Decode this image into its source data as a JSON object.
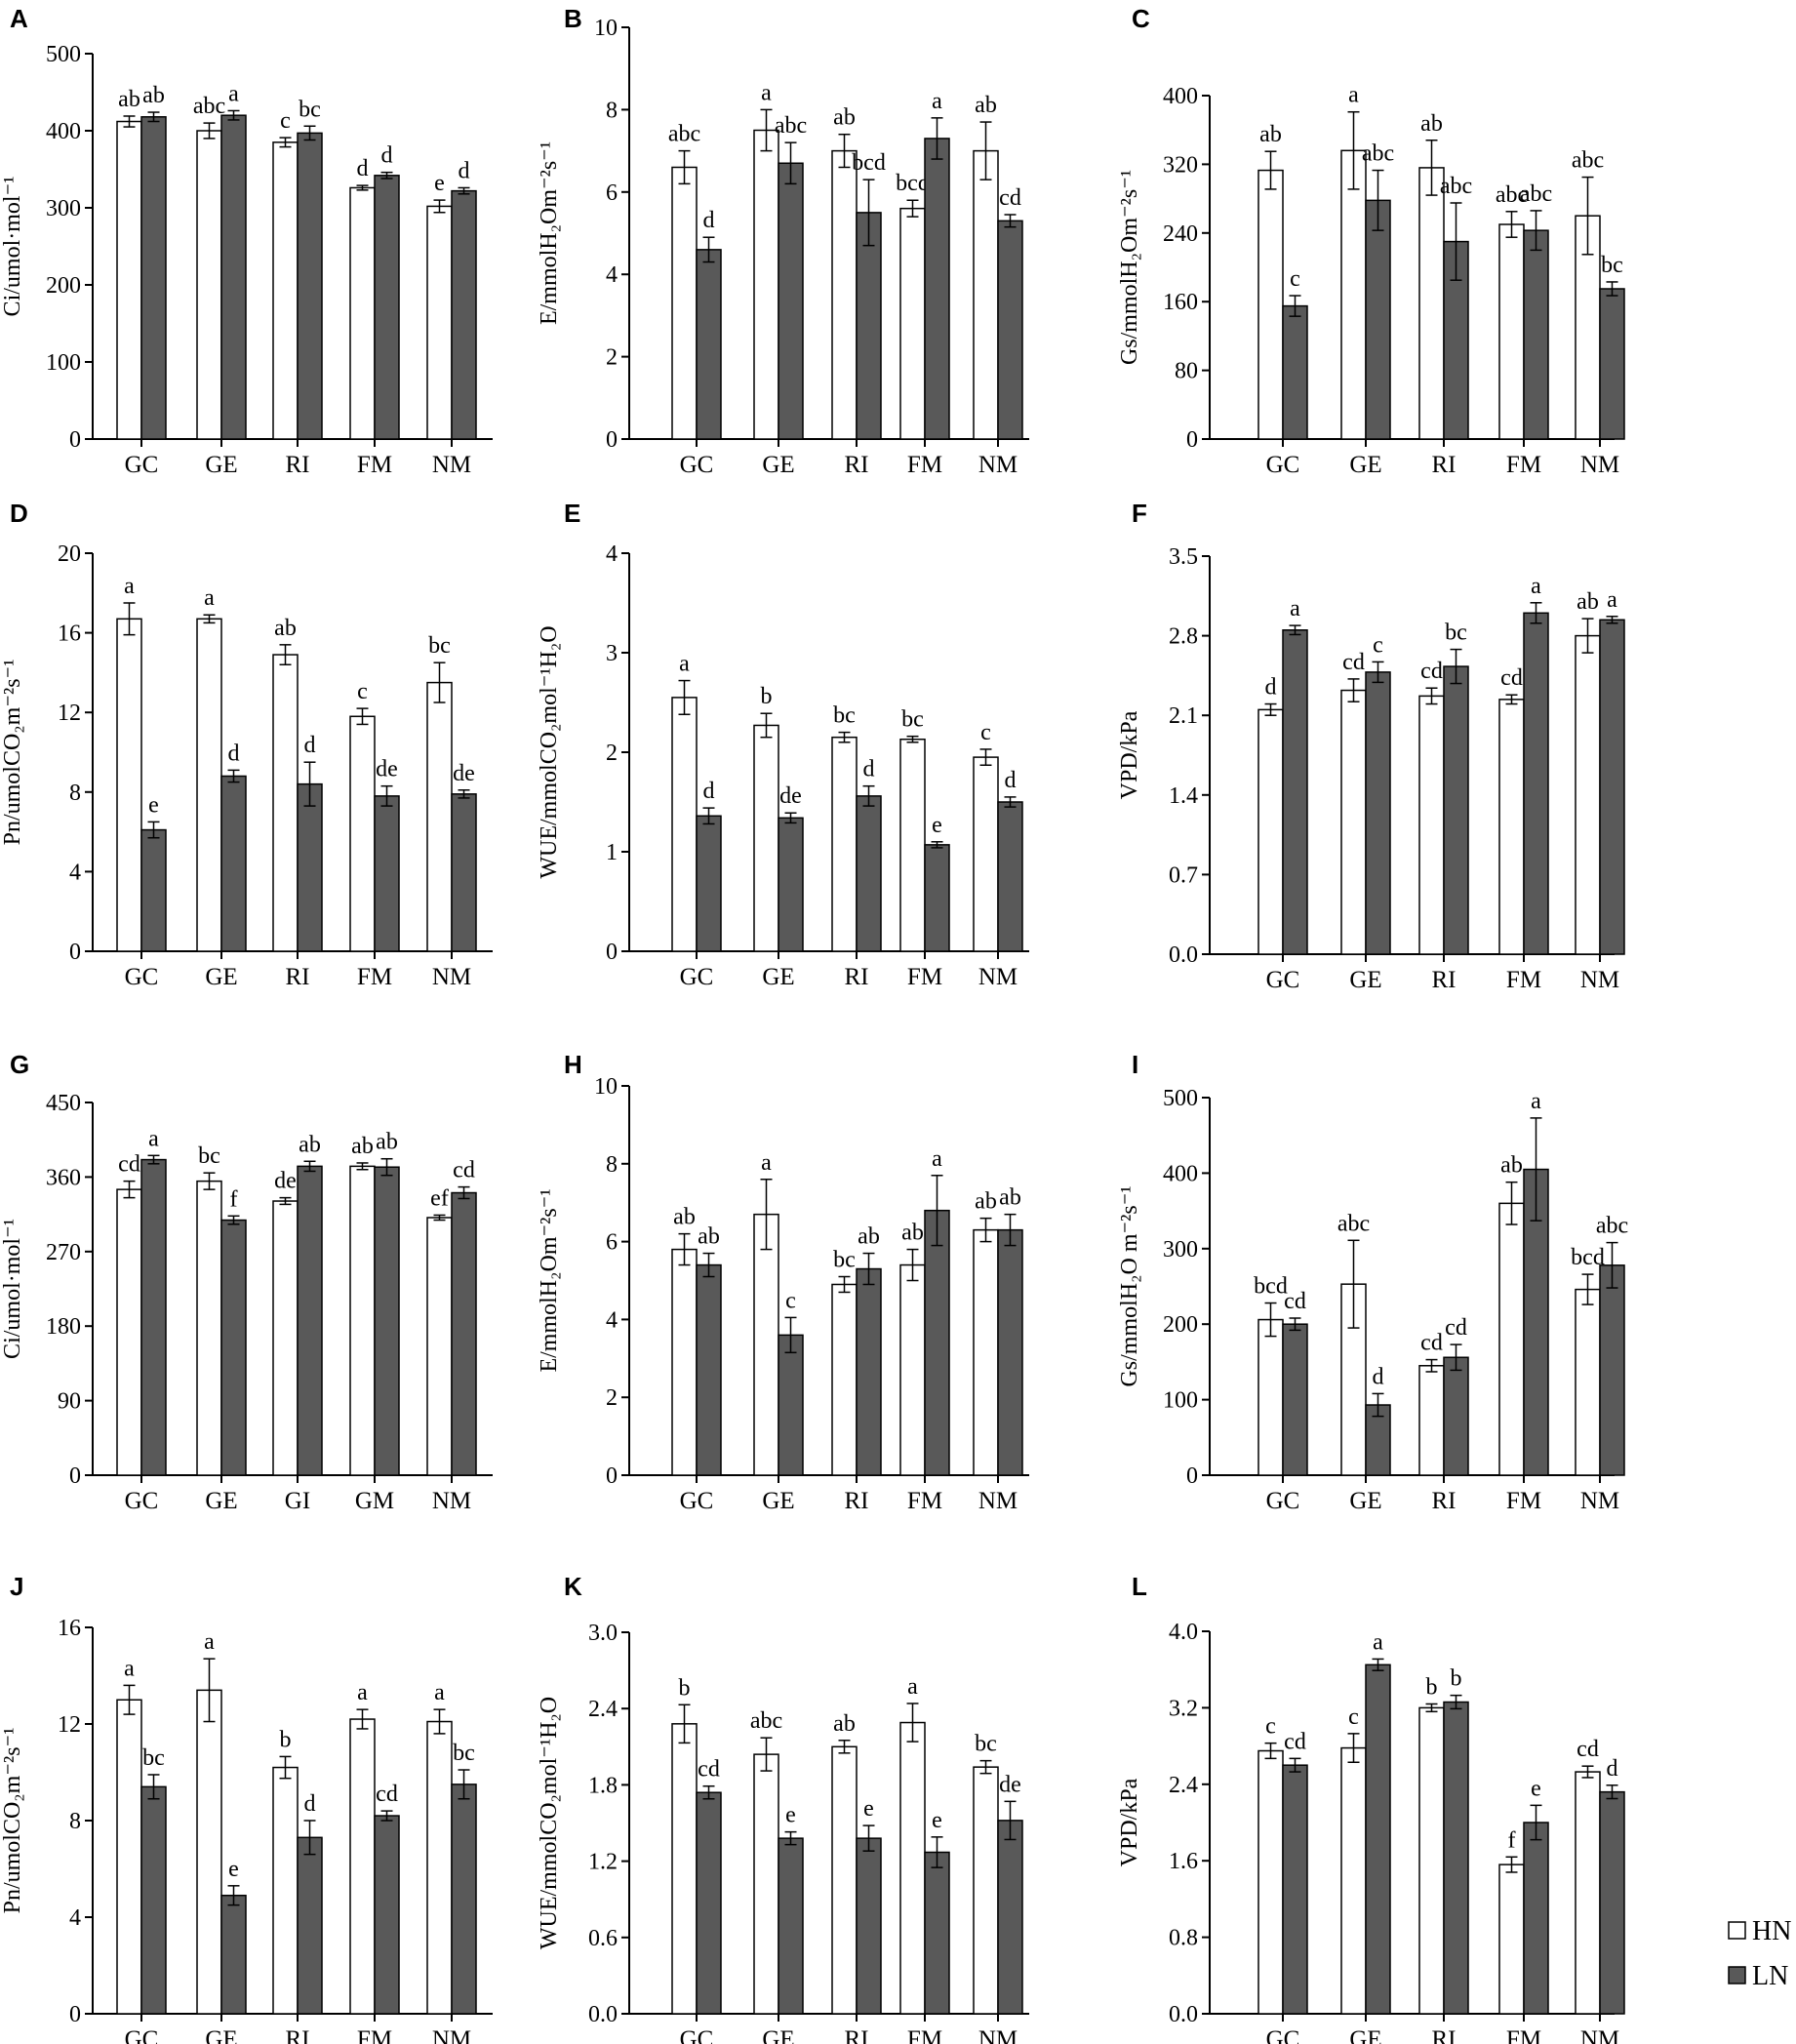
{
  "legend": {
    "position": "bottom-right",
    "items": [
      {
        "name": "HN",
        "color": "#ffffff"
      },
      {
        "name": "LN",
        "color": "#595959"
      }
    ]
  },
  "chart_data": [
    {
      "panel": "A",
      "type": "bar",
      "ylabel": "Ci/umol·mol⁻¹",
      "ylim": [
        0,
        500
      ],
      "yticks": [
        0,
        100,
        200,
        300,
        400,
        500
      ],
      "categories": [
        "GC",
        "GE",
        "RI",
        "FM",
        "NM"
      ],
      "series": [
        {
          "name": "HN",
          "values": [
            412,
            400,
            385,
            326,
            302
          ],
          "errors": [
            7,
            10,
            6,
            3,
            8
          ],
          "labels": [
            "ab",
            "abc",
            "c",
            "d",
            "e"
          ]
        },
        {
          "name": "LN",
          "values": [
            418,
            420,
            397,
            342,
            322
          ],
          "errors": [
            6,
            6,
            9,
            4,
            4
          ],
          "labels": [
            "ab",
            "a",
            "bc",
            "d",
            "d"
          ]
        }
      ]
    },
    {
      "panel": "B",
      "type": "bar",
      "ylabel": "E/mmolH₂Om⁻²s⁻¹",
      "ylim": [
        0,
        10
      ],
      "yticks": [
        0,
        2,
        4,
        6,
        8,
        10
      ],
      "categories": [
        "GC",
        "GE",
        "RI",
        "FM",
        "NM"
      ],
      "series": [
        {
          "name": "HN",
          "values": [
            6.6,
            7.5,
            7.0,
            5.6,
            7.0
          ],
          "errors": [
            0.4,
            0.5,
            0.4,
            0.2,
            0.7
          ],
          "labels": [
            "abc",
            "a",
            "ab",
            "bcd",
            "ab"
          ]
        },
        {
          "name": "LN",
          "values": [
            4.6,
            6.7,
            5.5,
            7.3,
            5.3
          ],
          "errors": [
            0.3,
            0.5,
            0.8,
            0.5,
            0.15
          ],
          "labels": [
            "d",
            "abc",
            "bcd",
            "a",
            "cd"
          ]
        }
      ]
    },
    {
      "panel": "C",
      "type": "bar",
      "ylabel": "Gs/mmolH₂Om⁻²s⁻¹",
      "ylim": [
        0,
        400
      ],
      "yticks": [
        0,
        80,
        160,
        240,
        320,
        400
      ],
      "categories": [
        "GC",
        "GE",
        "RI",
        "FM",
        "NM"
      ],
      "series": [
        {
          "name": "HN",
          "values": [
            313,
            336,
            316,
            250,
            260
          ],
          "errors": [
            22,
            45,
            32,
            15,
            45
          ],
          "labels": [
            "ab",
            "a",
            "ab",
            "abc",
            "abc"
          ]
        },
        {
          "name": "LN",
          "values": [
            155,
            278,
            230,
            243,
            175
          ],
          "errors": [
            12,
            35,
            45,
            23,
            8
          ],
          "labels": [
            "c",
            "abc",
            "abc",
            "abc",
            "bc"
          ]
        }
      ]
    },
    {
      "panel": "D",
      "type": "bar",
      "ylabel": "Pn/umolCO₂m⁻²s⁻¹",
      "ylim": [
        0,
        20
      ],
      "yticks": [
        0,
        4,
        8,
        12,
        16,
        20
      ],
      "categories": [
        "GC",
        "GE",
        "RI",
        "FM",
        "NM"
      ],
      "series": [
        {
          "name": "HN",
          "values": [
            16.7,
            16.7,
            14.9,
            11.8,
            13.5
          ],
          "errors": [
            0.8,
            0.2,
            0.5,
            0.4,
            1.0
          ],
          "labels": [
            "a",
            "a",
            "ab",
            "c",
            "bc"
          ]
        },
        {
          "name": "LN",
          "values": [
            6.1,
            8.8,
            8.4,
            7.8,
            7.9
          ],
          "errors": [
            0.4,
            0.3,
            1.1,
            0.5,
            0.2
          ],
          "labels": [
            "e",
            "d",
            "d",
            "de",
            "de"
          ]
        }
      ]
    },
    {
      "panel": "E",
      "type": "bar",
      "ylabel": "WUE/mmolCO₂mol⁻¹H₂O",
      "ylim": [
        0,
        4
      ],
      "yticks": [
        0,
        1,
        2,
        3,
        4
      ],
      "categories": [
        "GC",
        "GE",
        "RI",
        "FM",
        "NM"
      ],
      "series": [
        {
          "name": "HN",
          "values": [
            2.55,
            2.27,
            2.15,
            2.13,
            1.95
          ],
          "errors": [
            0.17,
            0.12,
            0.05,
            0.03,
            0.08
          ],
          "labels": [
            "a",
            "b",
            "bc",
            "bc",
            "c"
          ]
        },
        {
          "name": "LN",
          "values": [
            1.36,
            1.34,
            1.56,
            1.07,
            1.5
          ],
          "errors": [
            0.08,
            0.05,
            0.1,
            0.03,
            0.05
          ],
          "labels": [
            "d",
            "de",
            "d",
            "e",
            "d"
          ]
        }
      ]
    },
    {
      "panel": "F",
      "type": "bar",
      "ylabel": "VPD/kPa",
      "ylim": [
        0,
        3.5
      ],
      "yticks": [
        "0.0",
        "0.7",
        "1.4",
        "2.1",
        "2.8",
        "3.5"
      ],
      "categories": [
        "GC",
        "GE",
        "RI",
        "FM",
        "NM"
      ],
      "series": [
        {
          "name": "HN",
          "values": [
            2.15,
            2.32,
            2.27,
            2.24,
            2.8
          ],
          "errors": [
            0.05,
            0.1,
            0.07,
            0.04,
            0.15
          ],
          "labels": [
            "d",
            "cd",
            "cd",
            "cd",
            "ab"
          ]
        },
        {
          "name": "LN",
          "values": [
            2.85,
            2.48,
            2.53,
            3.0,
            2.94
          ],
          "errors": [
            0.04,
            0.09,
            0.15,
            0.09,
            0.03
          ],
          "labels": [
            "a",
            "c",
            "bc",
            "a",
            "a"
          ]
        }
      ]
    },
    {
      "panel": "G",
      "type": "bar",
      "ylabel": "Ci/umol·mol⁻¹",
      "ylim": [
        0,
        450
      ],
      "yticks": [
        0,
        90,
        180,
        270,
        360,
        450
      ],
      "categories": [
        "GC",
        "GE",
        "GI",
        "GM",
        "NM"
      ],
      "series": [
        {
          "name": "HN",
          "values": [
            345,
            355,
            331,
            373,
            311
          ],
          "errors": [
            10,
            10,
            4,
            4,
            3
          ],
          "labels": [
            "cd",
            "bc",
            "de",
            "ab",
            "ef"
          ]
        },
        {
          "name": "LN",
          "values": [
            381,
            308,
            373,
            372,
            341
          ],
          "errors": [
            5,
            5,
            6,
            10,
            7
          ],
          "labels": [
            "a",
            "f",
            "ab",
            "ab",
            "cd"
          ]
        }
      ]
    },
    {
      "panel": "H",
      "type": "bar",
      "ylabel": "E/mmolH₂Om⁻²s⁻¹",
      "ylim": [
        0,
        10
      ],
      "yticks": [
        0,
        2,
        4,
        6,
        8,
        10
      ],
      "categories": [
        "GC",
        "GE",
        "RI",
        "FM",
        "NM"
      ],
      "series": [
        {
          "name": "HN",
          "values": [
            5.8,
            6.7,
            4.9,
            5.4,
            6.3
          ],
          "errors": [
            0.4,
            0.9,
            0.2,
            0.4,
            0.3
          ],
          "labels": [
            "ab",
            "a",
            "bc",
            "ab",
            "ab"
          ]
        },
        {
          "name": "LN",
          "values": [
            5.4,
            3.6,
            5.3,
            6.8,
            6.3
          ],
          "errors": [
            0.3,
            0.45,
            0.4,
            0.9,
            0.4
          ],
          "labels": [
            "ab",
            "c",
            "ab",
            "a",
            "ab"
          ]
        }
      ]
    },
    {
      "panel": "I",
      "type": "bar",
      "ylabel": "Gs/mmolH₂O m⁻²s⁻¹",
      "ylim": [
        0,
        500
      ],
      "yticks": [
        0,
        100,
        200,
        300,
        400,
        500
      ],
      "categories": [
        "GC",
        "GE",
        "RI",
        "FM",
        "NM"
      ],
      "series": [
        {
          "name": "HN",
          "values": [
            206,
            253,
            145,
            360,
            246
          ],
          "errors": [
            22,
            58,
            8,
            28,
            20
          ],
          "labels": [
            "bcd",
            "abc",
            "cd",
            "ab",
            "bcd"
          ]
        },
        {
          "name": "LN",
          "values": [
            200,
            93,
            156,
            405,
            278
          ],
          "errors": [
            8,
            15,
            17,
            68,
            30
          ],
          "labels": [
            "cd",
            "d",
            "cd",
            "a",
            "abc"
          ]
        }
      ]
    },
    {
      "panel": "J",
      "type": "bar",
      "ylabel": "Pn/umolCO₂m⁻²s⁻¹",
      "ylim": [
        0,
        16
      ],
      "yticks": [
        0,
        4,
        8,
        12,
        16
      ],
      "categories": [
        "GC",
        "GE",
        "RI",
        "FM",
        "NM"
      ],
      "series": [
        {
          "name": "HN",
          "values": [
            13.0,
            13.4,
            10.2,
            12.2,
            12.1
          ],
          "errors": [
            0.6,
            1.3,
            0.45,
            0.4,
            0.5
          ],
          "labels": [
            "a",
            "a",
            "b",
            "a",
            "a"
          ]
        },
        {
          "name": "LN",
          "values": [
            9.4,
            4.9,
            7.3,
            8.2,
            9.5
          ],
          "errors": [
            0.5,
            0.4,
            0.7,
            0.2,
            0.6
          ],
          "labels": [
            "bc",
            "e",
            "d",
            "cd",
            "bc"
          ]
        }
      ]
    },
    {
      "panel": "K",
      "type": "bar",
      "ylabel": "WUE/mmolCO₂mol⁻¹H₂O",
      "ylim": [
        0,
        3
      ],
      "yticks": [
        "0.0",
        "0.6",
        "1.2",
        "1.8",
        "2.4",
        "3.0"
      ],
      "categories": [
        "GC",
        "GE",
        "RI",
        "FM",
        "NM"
      ],
      "series": [
        {
          "name": "HN",
          "values": [
            2.28,
            2.04,
            2.1,
            2.29,
            1.94
          ],
          "errors": [
            0.15,
            0.13,
            0.05,
            0.15,
            0.05
          ],
          "labels": [
            "b",
            "abc",
            "ab",
            "a",
            "bc"
          ]
        },
        {
          "name": "LN",
          "values": [
            1.74,
            1.38,
            1.38,
            1.27,
            1.52
          ],
          "errors": [
            0.05,
            0.05,
            0.1,
            0.12,
            0.15
          ],
          "labels": [
            "cd",
            "e",
            "e",
            "e",
            "de"
          ]
        }
      ]
    },
    {
      "panel": "L",
      "type": "bar",
      "ylabel": "VPD/kPa",
      "ylim": [
        0,
        4
      ],
      "yticks": [
        "0.0",
        "0.8",
        "1.6",
        "2.4",
        "3.2",
        "4.0"
      ],
      "categories": [
        "GC",
        "GE",
        "RI",
        "FM",
        "NM"
      ],
      "series": [
        {
          "name": "HN",
          "values": [
            2.75,
            2.78,
            3.2,
            1.56,
            2.53
          ],
          "errors": [
            0.08,
            0.15,
            0.04,
            0.08,
            0.06
          ],
          "labels": [
            "c",
            "c",
            "b",
            "f",
            "cd"
          ]
        },
        {
          "name": "LN",
          "values": [
            2.6,
            3.65,
            3.26,
            2.0,
            2.32
          ],
          "errors": [
            0.07,
            0.06,
            0.07,
            0.18,
            0.07
          ],
          "labels": [
            "cd",
            "a",
            "b",
            "e",
            "d"
          ]
        }
      ]
    }
  ]
}
